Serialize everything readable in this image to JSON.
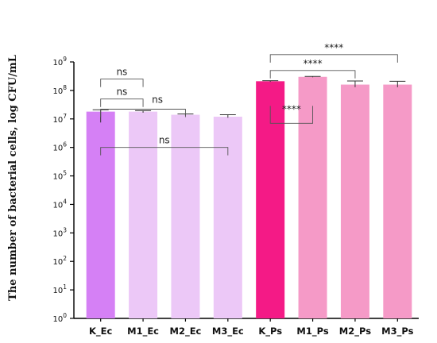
{
  "chart_data": {
    "type": "bar",
    "title": "",
    "xlabel": "",
    "ylabel": "The number of bacterial cells, log CFU/mL",
    "yscale": "log",
    "ylim": [
      1,
      1000000000
    ],
    "yticks": [
      {
        "value": 1,
        "base": "10",
        "exp": "0"
      },
      {
        "value": 10,
        "base": "10",
        "exp": "1"
      },
      {
        "value": 100,
        "base": "10",
        "exp": "2"
      },
      {
        "value": 1000,
        "base": "10",
        "exp": "3"
      },
      {
        "value": 10000,
        "base": "10",
        "exp": "4"
      },
      {
        "value": 100000,
        "base": "10",
        "exp": "5"
      },
      {
        "value": 1000000,
        "base": "10",
        "exp": "6"
      },
      {
        "value": 10000000,
        "base": "10",
        "exp": "7"
      },
      {
        "value": 100000000,
        "base": "10",
        "exp": "8"
      },
      {
        "value": 1000000000,
        "base": "10",
        "exp": "9"
      }
    ],
    "categories": [
      "K_Ec",
      "M1_Ec",
      "M2_Ec",
      "M3_Ec",
      "K_Ps",
      "M1_Ps",
      "M2_Ps",
      "M3_Ps"
    ],
    "values": [
      18000000,
      18000000,
      14000000,
      12000000,
      210000000,
      300000000,
      160000000,
      160000000
    ],
    "error_upper": [
      21000000,
      19500000,
      15000000,
      14000000,
      220000000,
      310000000,
      215000000,
      210000000
    ],
    "error_lower": [
      7500000,
      16500000,
      13000000,
      11000000,
      200000000,
      290000000,
      130000000,
      130000000
    ],
    "colors": [
      "#d580f5",
      "#ecc8f7",
      "#ecc8f7",
      "#ecc8f7",
      "#f41a86",
      "#f59ac7",
      "#f59ac7",
      "#f59ac7"
    ],
    "grid": false,
    "significance": [
      {
        "from": 0,
        "to": 1,
        "y": 250000000,
        "label": "ns",
        "label_pos": "above"
      },
      {
        "from": 0,
        "to": 1,
        "y": 50000000,
        "label": "ns",
        "label_pos": "above"
      },
      {
        "from": 0,
        "to": 2,
        "y": 22000000,
        "label": "ns",
        "label_pos": "above-right"
      },
      {
        "from": 0,
        "to": 3,
        "y": 1000000,
        "label": "ns",
        "label_pos": "above"
      },
      {
        "from": 4,
        "to": 5,
        "y": 7000000,
        "label": "****",
        "label_pos": "inside",
        "orientation": "down"
      },
      {
        "from": 4,
        "to": 6,
        "y": 500000000,
        "label": "****",
        "label_pos": "above"
      },
      {
        "from": 4,
        "to": 7,
        "y": 1800000000,
        "label": "****",
        "label_pos": "above"
      }
    ]
  }
}
